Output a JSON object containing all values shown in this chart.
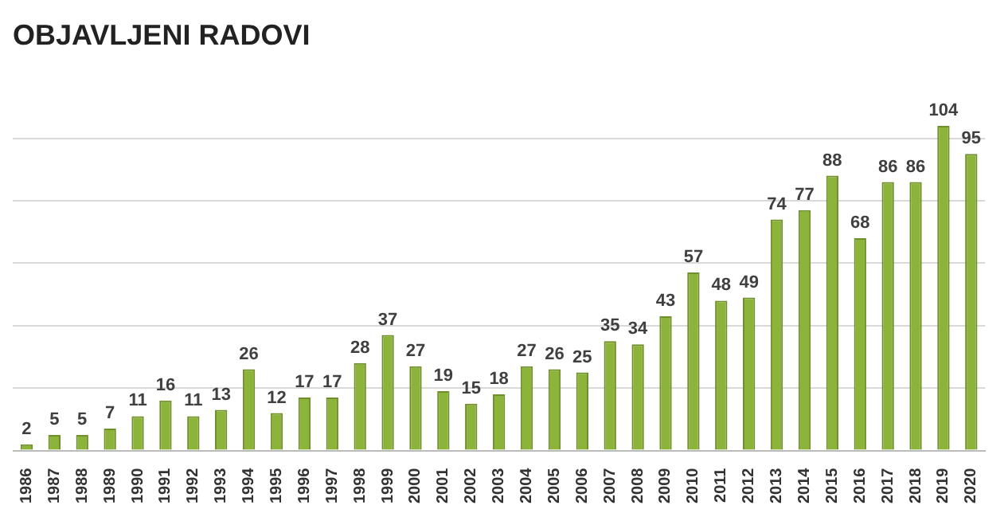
{
  "chart_data": {
    "type": "bar",
    "title": "OBJAVLJENI RADOVI",
    "categories": [
      "1986",
      "1987",
      "1988",
      "1989",
      "1990",
      "1991",
      "1992",
      "1993",
      "1994",
      "1995",
      "1996",
      "1997",
      "1998",
      "1999",
      "2000",
      "2001",
      "2002",
      "2003",
      "2004",
      "2005",
      "2006",
      "2007",
      "2008",
      "2009",
      "2010",
      "2011",
      "2012",
      "2013",
      "2014",
      "2015",
      "2016",
      "2017",
      "2018",
      "2019",
      "2020"
    ],
    "values": [
      2,
      5,
      5,
      7,
      11,
      16,
      11,
      13,
      26,
      12,
      17,
      17,
      28,
      37,
      27,
      19,
      15,
      18,
      27,
      26,
      25,
      35,
      34,
      43,
      57,
      48,
      49,
      74,
      77,
      88,
      68,
      86,
      86,
      104,
      95
    ],
    "color": "#8db43a",
    "yticks": [
      {
        "value": 0,
        "label": null
      },
      {
        "value": 20,
        "label": null
      },
      {
        "value": 40,
        "label": null
      },
      {
        "value": 60,
        "label": null
      },
      {
        "value": 80,
        "label": null
      },
      {
        "value": 100,
        "label": null
      }
    ],
    "grid": "y",
    "tick_labels": "x",
    "data_labels": true,
    "legend": false
  }
}
